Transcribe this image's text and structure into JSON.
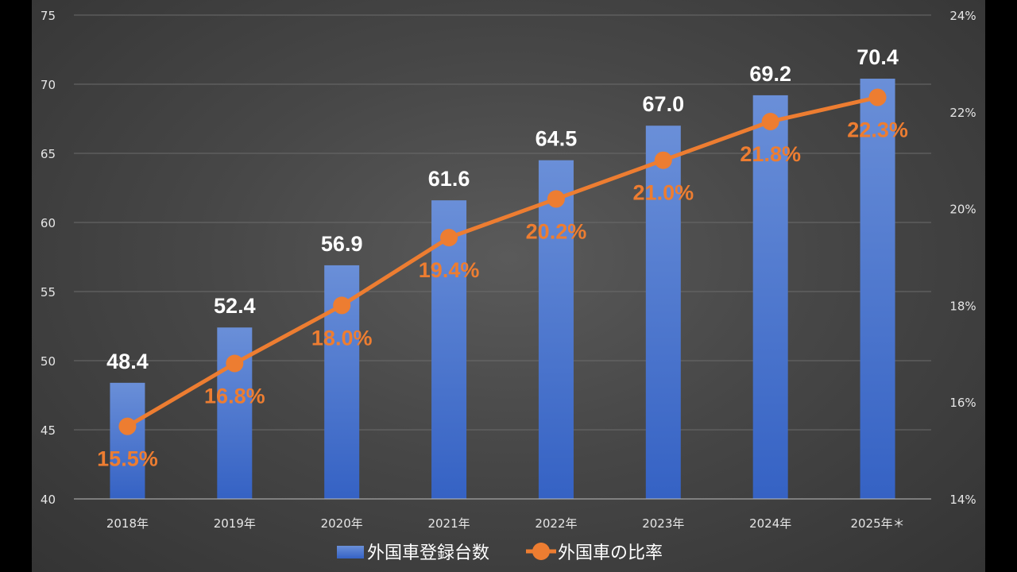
{
  "chart_data": {
    "type": "bar",
    "categories": [
      "2018年",
      "2019年",
      "2020年",
      "2021年",
      "2022年",
      "2023年",
      "2024年",
      "2025年＊"
    ],
    "series": [
      {
        "name": "外国車登録台数",
        "type": "bar",
        "axis": "left",
        "color": "#4472c4",
        "values": [
          48.4,
          52.4,
          56.9,
          61.6,
          64.5,
          67.0,
          69.2,
          70.4
        ],
        "labels": [
          "48.4",
          "52.4",
          "56.9",
          "61.6",
          "64.5",
          "67.0",
          "69.2",
          "70.4"
        ]
      },
      {
        "name": "外国車の比率",
        "type": "line",
        "axis": "right",
        "color": "#ed7d31",
        "values": [
          15.5,
          16.8,
          18.0,
          19.4,
          20.2,
          21.0,
          21.8,
          22.3
        ],
        "labels": [
          "15.5%",
          "16.8%",
          "18.0%",
          "19.4%",
          "20.2%",
          "21.0%",
          "21.8%",
          "22.3%"
        ]
      }
    ],
    "y_left": {
      "min": 40,
      "max": 75,
      "ticks": [
        "40",
        "45",
        "50",
        "55",
        "60",
        "65",
        "70",
        "75"
      ]
    },
    "y_right": {
      "min": 14,
      "max": 24,
      "ticks": [
        "14%",
        "16%",
        "18%",
        "20%",
        "22%",
        "24%"
      ]
    },
    "grid": true,
    "legend_position": "bottom",
    "title": "",
    "xlabel": "",
    "ylabel": ""
  }
}
